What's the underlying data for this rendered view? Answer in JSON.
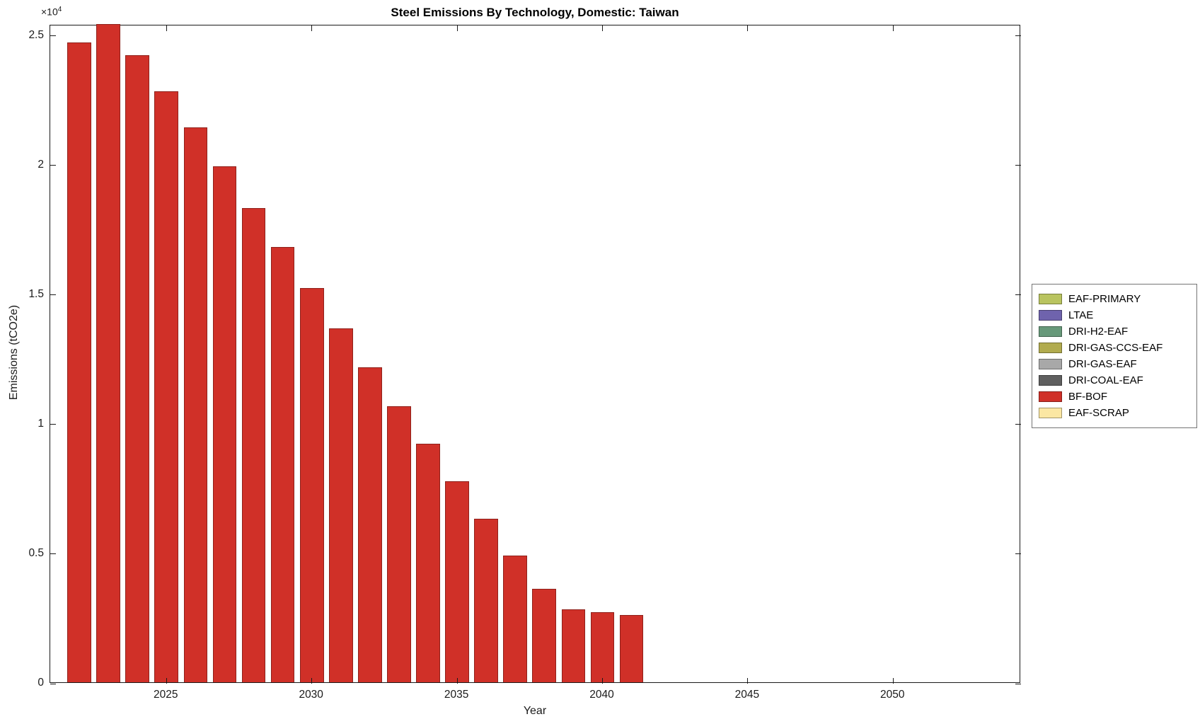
{
  "chart_data": {
    "type": "bar",
    "title": "Steel Emissions By Technology, Domestic: Taiwan",
    "xlabel": "Year",
    "ylabel": "Emissions (tCO2e)",
    "y_multiplier_base": "×10",
    "y_multiplier_exp": "4",
    "xlim": [
      2021.0,
      2054.4
    ],
    "ylim": [
      0,
      25400
    ],
    "x_ticks": [
      2025,
      2030,
      2035,
      2040,
      2045,
      2050
    ],
    "x_tick_labels": [
      "2025",
      "2030",
      "2035",
      "2040",
      "2045",
      "2050"
    ],
    "y_ticks": [
      0,
      5000,
      10000,
      15000,
      20000,
      25000
    ],
    "y_tick_labels": [
      "0",
      "0.5",
      "1",
      "1.5",
      "2",
      "2.5"
    ],
    "grid": false,
    "legend_position": "right-outside",
    "categories": [
      2022,
      2023,
      2024,
      2025,
      2026,
      2027,
      2028,
      2029,
      2030,
      2031,
      2032,
      2033,
      2034,
      2035,
      2036,
      2037,
      2038,
      2039,
      2040,
      2041
    ],
    "series": [
      {
        "name": "BF-BOF",
        "color": "#d03028",
        "values": [
          24700,
          25400,
          24200,
          22800,
          21400,
          19900,
          18300,
          16800,
          15200,
          13650,
          12150,
          10650,
          9200,
          7750,
          6300,
          4900,
          3600,
          2800,
          2700,
          2600
        ]
      }
    ],
    "legend": [
      {
        "label": "EAF-PRIMARY",
        "color": "#b9c45f"
      },
      {
        "label": "LTAE",
        "color": "#6f63ad"
      },
      {
        "label": "DRI-H2-EAF",
        "color": "#67997a"
      },
      {
        "label": "DRI-GAS-CCS-EAF",
        "color": "#b1ab4e"
      },
      {
        "label": "DRI-GAS-EAF",
        "color": "#a8a8a8"
      },
      {
        "label": "DRI-COAL-EAF",
        "color": "#5f5f5f"
      },
      {
        "label": "BF-BOF",
        "color": "#d03028"
      },
      {
        "label": "EAF-SCRAP",
        "color": "#fbe7a3"
      }
    ],
    "axis_color": "#1a1a1a"
  }
}
